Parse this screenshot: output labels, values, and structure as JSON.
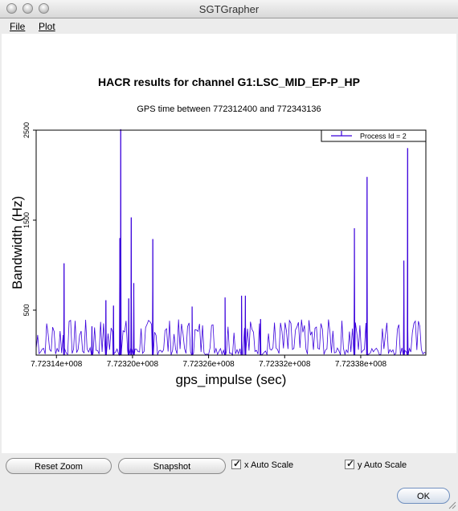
{
  "window": {
    "title": "SGTGrapher"
  },
  "menu": {
    "file": "File",
    "plot": "Plot"
  },
  "plot": {
    "title": "HACR results for channel G1:LSC_MID_EP-P_HP",
    "subtitle": "GPS time between 772312400 and 772343136"
  },
  "buttons": {
    "reset_zoom": "Reset Zoom",
    "snapshot": "Snapshot",
    "ok": "OK"
  },
  "checkboxes": {
    "x_auto": {
      "label": "x Auto Scale",
      "checked": true
    },
    "y_auto": {
      "label": "y Auto Scale",
      "checked": true
    }
  },
  "colors": {
    "series": "#3a00dc"
  },
  "chart_data": {
    "type": "line",
    "xlabel": "gps_impulse (sec)",
    "ylabel": "Bandwidth (Hz)",
    "xlim": [
      772312400,
      772343136
    ],
    "ylim": [
      0,
      2500
    ],
    "xticks": [
      772314000,
      772320000,
      772326000,
      772332000,
      772338000
    ],
    "xtick_labels": [
      "7.72314e+008",
      "7.72320e+008",
      "7.72326e+008",
      "7.72332e+008",
      "7.72338e+008"
    ],
    "yticks": [
      500,
      1500,
      2500
    ],
    "ytick_labels": [
      "500",
      "1500",
      "2500"
    ],
    "legend": {
      "placement": "top-right",
      "entries": [
        "Process Id = 2"
      ]
    },
    "series": [
      {
        "name": "Process Id = 2",
        "spikes": [
          {
            "x": 772314600,
            "y": 1020
          },
          {
            "x": 772316800,
            "y": 320
          },
          {
            "x": 772317900,
            "y": 610
          },
          {
            "x": 772318500,
            "y": 550
          },
          {
            "x": 772319070,
            "y": 2510
          },
          {
            "x": 772319000,
            "y": 1300
          },
          {
            "x": 772319700,
            "y": 630
          },
          {
            "x": 772319900,
            "y": 1530
          },
          {
            "x": 772320100,
            "y": 800
          },
          {
            "x": 772321600,
            "y": 1290
          },
          {
            "x": 772324700,
            "y": 540
          },
          {
            "x": 772327300,
            "y": 640
          },
          {
            "x": 772328600,
            "y": 660
          },
          {
            "x": 772328900,
            "y": 660
          },
          {
            "x": 772330100,
            "y": 400
          },
          {
            "x": 772337500,
            "y": 1410
          },
          {
            "x": 772338500,
            "y": 1980
          },
          {
            "x": 772341400,
            "y": 1050
          },
          {
            "x": 772341700,
            "y": 2300
          }
        ],
        "baseline_level": 150,
        "baseline_max": 420,
        "baseline_samples": 260
      }
    ]
  }
}
